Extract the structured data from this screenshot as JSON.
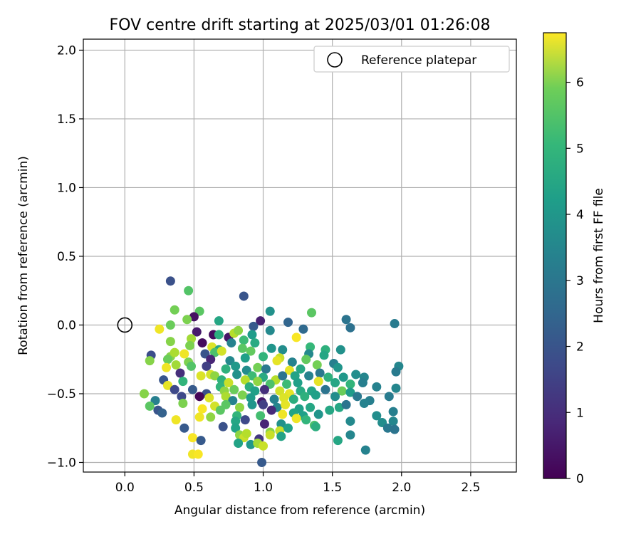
{
  "chart_data": {
    "type": "scatter",
    "title": "FOV centre drift starting at 2025/03/01 01:26:08",
    "xlabel": "Angular distance from reference (arcmin)",
    "ylabel": "Rotation from reference (arcmin)",
    "xlim": [
      -0.3,
      2.83
    ],
    "ylim": [
      -1.07,
      2.08
    ],
    "xticks": [
      "0.0",
      "0.5",
      "1.0",
      "1.5",
      "2.0",
      "2.5"
    ],
    "yticks": [
      "−1.0",
      "−0.5",
      "0.0",
      "0.5",
      "1.0",
      "1.5",
      "2.0"
    ],
    "grid": true,
    "legend": {
      "position": "top-right",
      "entries": [
        {
          "label": "Reference platepar",
          "marker": "open-circle"
        }
      ]
    },
    "reference": {
      "x": 0.0,
      "y": 0.0
    },
    "colorbar": {
      "label": "Hours from first FF file",
      "colormap": "viridis",
      "range": [
        0,
        6.75
      ],
      "ticks": [
        "0",
        "1",
        "2",
        "3",
        "4",
        "5",
        "6"
      ]
    },
    "points": [
      [
        0.33,
        0.32,
        1.7
      ],
      [
        0.46,
        0.25,
        4.9
      ],
      [
        0.86,
        0.21,
        1.8
      ],
      [
        0.36,
        0.11,
        5.3
      ],
      [
        0.54,
        0.1,
        5.0
      ],
      [
        1.05,
        0.1,
        3.4
      ],
      [
        1.35,
        0.09,
        5.0
      ],
      [
        0.5,
        0.06,
        0.3
      ],
      [
        0.45,
        0.04,
        5.4
      ],
      [
        0.68,
        0.03,
        4.0
      ],
      [
        0.98,
        0.03,
        0.6
      ],
      [
        1.6,
        0.04,
        2.6
      ],
      [
        1.63,
        -0.02,
        2.5
      ],
      [
        1.95,
        0.01,
        2.8
      ],
      [
        0.25,
        -0.03,
        6.6
      ],
      [
        0.33,
        0.0,
        5.2
      ],
      [
        1.18,
        0.02,
        2.2
      ],
      [
        1.29,
        -0.03,
        2.3
      ],
      [
        0.52,
        -0.05,
        0.5
      ],
      [
        0.93,
        -0.01,
        1.9
      ],
      [
        1.05,
        -0.04,
        3.2
      ],
      [
        0.64,
        -0.07,
        0.2
      ],
      [
        0.68,
        -0.07,
        4.2
      ],
      [
        0.75,
        -0.09,
        0.4
      ],
      [
        0.79,
        -0.06,
        6.0
      ],
      [
        0.82,
        -0.04,
        5.6
      ],
      [
        0.92,
        -0.07,
        3.7
      ],
      [
        1.24,
        -0.09,
        6.7
      ],
      [
        0.33,
        -0.12,
        5.5
      ],
      [
        0.48,
        -0.1,
        5.8
      ],
      [
        0.56,
        -0.13,
        0.2
      ],
      [
        0.77,
        -0.13,
        3.0
      ],
      [
        0.86,
        -0.11,
        4.6
      ],
      [
        0.94,
        -0.13,
        4.1
      ],
      [
        1.34,
        -0.16,
        4.5
      ],
      [
        1.45,
        -0.18,
        4.3
      ],
      [
        0.47,
        -0.15,
        5.4
      ],
      [
        0.63,
        -0.16,
        6.4
      ],
      [
        0.68,
        -0.18,
        3.9
      ],
      [
        0.85,
        -0.17,
        5.0
      ],
      [
        1.06,
        -0.17,
        3.5
      ],
      [
        1.14,
        -0.18,
        3.3
      ],
      [
        1.56,
        -0.18,
        3.4
      ],
      [
        0.19,
        -0.22,
        1.6
      ],
      [
        0.33,
        -0.23,
        5.5
      ],
      [
        0.36,
        -0.2,
        5.9
      ],
      [
        0.43,
        -0.21,
        6.6
      ],
      [
        0.58,
        -0.21,
        1.8
      ],
      [
        0.65,
        -0.2,
        4.8
      ],
      [
        0.7,
        -0.19,
        6.3
      ],
      [
        0.91,
        -0.19,
        5.1
      ],
      [
        1.0,
        -0.23,
        4.4
      ],
      [
        1.12,
        -0.24,
        6.2
      ],
      [
        1.33,
        -0.21,
        3.2
      ],
      [
        1.44,
        -0.22,
        4.0
      ],
      [
        0.18,
        -0.26,
        5.5
      ],
      [
        0.31,
        -0.25,
        5.2
      ],
      [
        0.46,
        -0.27,
        5.4
      ],
      [
        0.62,
        -0.25,
        0.7
      ],
      [
        0.76,
        -0.26,
        3.2
      ],
      [
        0.87,
        -0.24,
        3.8
      ],
      [
        1.1,
        -0.26,
        6.5
      ],
      [
        1.21,
        -0.27,
        3.0
      ],
      [
        1.31,
        -0.25,
        5.1
      ],
      [
        1.51,
        -0.28,
        2.9
      ],
      [
        0.3,
        -0.31,
        6.6
      ],
      [
        0.37,
        -0.29,
        5.8
      ],
      [
        0.48,
        -0.3,
        4.9
      ],
      [
        0.59,
        -0.3,
        1.3
      ],
      [
        0.73,
        -0.32,
        4.3
      ],
      [
        0.8,
        -0.3,
        3.6
      ],
      [
        0.88,
        -0.33,
        3.3
      ],
      [
        0.96,
        -0.31,
        5.3
      ],
      [
        1.02,
        -0.32,
        2.7
      ],
      [
        1.19,
        -0.33,
        6.5
      ],
      [
        1.27,
        -0.32,
        4.0
      ],
      [
        1.39,
        -0.29,
        5.3
      ],
      [
        1.54,
        -0.31,
        3.5
      ],
      [
        1.73,
        -0.38,
        3.1
      ],
      [
        1.98,
        -0.3,
        3.1
      ],
      [
        1.96,
        -0.34,
        2.8
      ],
      [
        0.4,
        -0.35,
        0.9
      ],
      [
        0.55,
        -0.37,
        6.4
      ],
      [
        0.62,
        -0.36,
        6.3
      ],
      [
        0.65,
        -0.37,
        5.6
      ],
      [
        0.81,
        -0.36,
        3.4
      ],
      [
        0.92,
        -0.37,
        4.6
      ],
      [
        1.0,
        -0.38,
        4.1
      ],
      [
        1.09,
        -0.4,
        6.0
      ],
      [
        1.14,
        -0.37,
        2.6
      ],
      [
        1.23,
        -0.37,
        3.9
      ],
      [
        1.33,
        -0.37,
        3.0
      ],
      [
        1.41,
        -0.35,
        2.7
      ],
      [
        1.47,
        -0.38,
        4.3
      ],
      [
        1.58,
        -0.38,
        3.6
      ],
      [
        1.67,
        -0.36,
        3.3
      ],
      [
        0.28,
        -0.4,
        1.8
      ],
      [
        0.42,
        -0.41,
        4.4
      ],
      [
        0.7,
        -0.4,
        4.3
      ],
      [
        0.75,
        -0.42,
        6.2
      ],
      [
        0.87,
        -0.4,
        6.0
      ],
      [
        0.96,
        -0.41,
        5.6
      ],
      [
        1.05,
        -0.43,
        4.8
      ],
      [
        1.17,
        -0.43,
        4.6
      ],
      [
        1.25,
        -0.42,
        3.8
      ],
      [
        1.4,
        -0.41,
        6.5
      ],
      [
        1.52,
        -0.42,
        4.0
      ],
      [
        1.63,
        -0.43,
        4.4
      ],
      [
        1.72,
        -0.42,
        2.9
      ],
      [
        1.82,
        -0.45,
        3.0
      ],
      [
        1.96,
        -0.46,
        3.1
      ],
      [
        0.31,
        -0.44,
        6.5
      ],
      [
        0.36,
        -0.47,
        1.5
      ],
      [
        0.49,
        -0.47,
        1.9
      ],
      [
        0.59,
        -0.5,
        1.7
      ],
      [
        0.69,
        -0.45,
        4.4
      ],
      [
        0.72,
        -0.48,
        5.6
      ],
      [
        0.79,
        -0.47,
        5.2
      ],
      [
        0.9,
        -0.45,
        4.2
      ],
      [
        0.94,
        -0.48,
        3.8
      ],
      [
        1.01,
        -0.47,
        0.9
      ],
      [
        1.12,
        -0.48,
        6.3
      ],
      [
        1.19,
        -0.5,
        6.5
      ],
      [
        1.27,
        -0.48,
        4.1
      ],
      [
        1.35,
        -0.48,
        3.9
      ],
      [
        1.45,
        -0.47,
        2.6
      ],
      [
        1.57,
        -0.48,
        5.2
      ],
      [
        1.63,
        -0.49,
        3.7
      ],
      [
        0.14,
        -0.5,
        5.5
      ],
      [
        0.22,
        -0.55,
        2.9
      ],
      [
        0.41,
        -0.52,
        1.5
      ],
      [
        0.54,
        -0.52,
        0.1
      ],
      [
        0.61,
        -0.53,
        6.4
      ],
      [
        0.73,
        -0.52,
        5.9
      ],
      [
        0.78,
        -0.55,
        3.0
      ],
      [
        0.85,
        -0.51,
        5.4
      ],
      [
        0.91,
        -0.53,
        3.7
      ],
      [
        0.99,
        -0.56,
        0.5
      ],
      [
        1.08,
        -0.54,
        3.0
      ],
      [
        1.15,
        -0.53,
        6.4
      ],
      [
        1.22,
        -0.54,
        4.2
      ],
      [
        1.3,
        -0.52,
        4.3
      ],
      [
        1.38,
        -0.51,
        3.8
      ],
      [
        1.52,
        -0.52,
        3.3
      ],
      [
        1.68,
        -0.52,
        2.7
      ],
      [
        1.77,
        -0.55,
        2.9
      ],
      [
        1.91,
        -0.52,
        2.8
      ],
      [
        0.18,
        -0.59,
        5.0
      ],
      [
        0.42,
        -0.57,
        5.4
      ],
      [
        0.56,
        -0.61,
        6.7
      ],
      [
        0.65,
        -0.59,
        6.3
      ],
      [
        0.73,
        -0.58,
        5.0
      ],
      [
        0.83,
        -0.6,
        5.6
      ],
      [
        0.92,
        -0.58,
        3.5
      ],
      [
        1.0,
        -0.58,
        1.3
      ],
      [
        1.1,
        -0.6,
        3.1
      ],
      [
        1.16,
        -0.58,
        6.5
      ],
      [
        1.26,
        -0.61,
        3.8
      ],
      [
        1.34,
        -0.6,
        4.0
      ],
      [
        1.48,
        -0.62,
        4.0
      ],
      [
        1.55,
        -0.6,
        4.0
      ],
      [
        1.6,
        -0.58,
        2.6
      ],
      [
        1.73,
        -0.57,
        3.0
      ],
      [
        0.24,
        -0.62,
        1.8
      ],
      [
        0.27,
        -0.64,
        2.1
      ],
      [
        0.54,
        -0.67,
        6.6
      ],
      [
        0.62,
        -0.67,
        5.6
      ],
      [
        0.69,
        -0.62,
        5.0
      ],
      [
        0.81,
        -0.66,
        4.4
      ],
      [
        0.98,
        -0.66,
        4.7
      ],
      [
        1.06,
        -0.62,
        0.8
      ],
      [
        1.14,
        -0.65,
        6.6
      ],
      [
        1.22,
        -0.64,
        3.9
      ],
      [
        1.29,
        -0.66,
        3.8
      ],
      [
        1.4,
        -0.65,
        3.5
      ],
      [
        1.63,
        -0.7,
        3.2
      ],
      [
        1.82,
        -0.66,
        3.3
      ],
      [
        1.94,
        -0.63,
        2.9
      ],
      [
        0.37,
        -0.69,
        6.6
      ],
      [
        0.71,
        -0.74,
        1.7
      ],
      [
        0.8,
        -0.7,
        4.0
      ],
      [
        0.87,
        -0.69,
        1.5
      ],
      [
        1.01,
        -0.72,
        0.7
      ],
      [
        1.13,
        -0.72,
        3.4
      ],
      [
        1.24,
        -0.68,
        6.6
      ],
      [
        1.31,
        -0.69,
        4.4
      ],
      [
        1.37,
        -0.73,
        4.8
      ],
      [
        1.86,
        -0.71,
        3.3
      ],
      [
        1.94,
        -0.7,
        3.1
      ],
      [
        0.43,
        -0.75,
        1.9
      ],
      [
        0.8,
        -0.75,
        3.9
      ],
      [
        1.05,
        -0.78,
        5.5
      ],
      [
        1.12,
        -0.77,
        6.2
      ],
      [
        1.18,
        -0.75,
        3.8
      ],
      [
        1.38,
        -0.74,
        4.2
      ],
      [
        1.9,
        -0.75,
        2.7
      ],
      [
        1.95,
        -0.76,
        2.6
      ],
      [
        0.49,
        -0.82,
        6.7
      ],
      [
        0.55,
        -0.84,
        1.9
      ],
      [
        0.83,
        -0.8,
        5.6
      ],
      [
        0.86,
        -0.82,
        6.2
      ],
      [
        0.88,
        -0.79,
        6.0
      ],
      [
        0.97,
        -0.83,
        1.1
      ],
      [
        1.05,
        -0.8,
        6.2
      ],
      [
        1.13,
        -0.81,
        3.9
      ],
      [
        1.63,
        -0.8,
        3.1
      ],
      [
        1.54,
        -0.84,
        4.0
      ],
      [
        0.82,
        -0.86,
        3.9
      ],
      [
        0.91,
        -0.87,
        3.6
      ],
      [
        0.96,
        -0.86,
        5.8
      ],
      [
        1.0,
        -0.88,
        6.2
      ],
      [
        0.49,
        -0.94,
        6.6
      ],
      [
        0.53,
        -0.94,
        6.7
      ],
      [
        1.74,
        -0.91,
        3.0
      ],
      [
        0.99,
        -1.0,
        1.9
      ]
    ]
  }
}
